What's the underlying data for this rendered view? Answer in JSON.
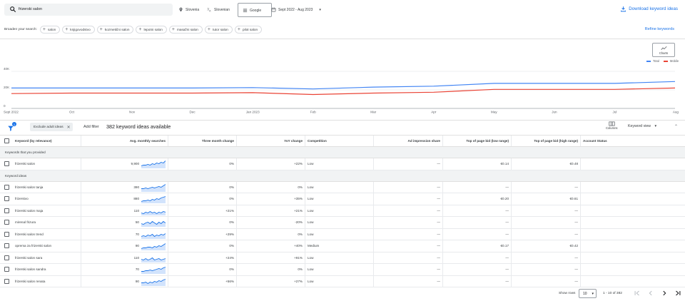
{
  "search": {
    "query": "frizerski salon"
  },
  "filters": {
    "location": "Slovenia",
    "language": "Slovenian",
    "network": "Google",
    "date_range": "Sept 2022 - Aug 2023"
  },
  "download_label": "Download keyword ideas",
  "broaden": {
    "label": "Broaden your search:",
    "chips": [
      "salon",
      "knjigovodstvo",
      "kozmetični salon",
      "lepotni salon",
      "masažni salon",
      "tutor salon",
      "pilot salon"
    ]
  },
  "refine_label": "Refine keywords",
  "charts_button_label": "Charts",
  "chart_data": {
    "type": "line",
    "x": [
      "Sept 2022",
      "Oct",
      "Nov",
      "Dec",
      "Jan 2023",
      "Feb",
      "Mar",
      "Apr",
      "May",
      "Jun",
      "Jul",
      "Aug"
    ],
    "series": [
      {
        "name": "Total",
        "color": "#4285f4",
        "values": [
          22000,
          22000,
          22000,
          22000,
          22500,
          21000,
          23000,
          24000,
          27000,
          27000,
          27000,
          29000
        ]
      },
      {
        "name": "Mobile",
        "color": "#ea4335",
        "values": [
          16000,
          16500,
          16500,
          16500,
          17000,
          15000,
          16500,
          17500,
          20500,
          20500,
          20500,
          22000
        ]
      }
    ],
    "y_ticks": [
      "40K",
      "20K",
      "0"
    ],
    "ylim": [
      0,
      40000
    ],
    "grid": true,
    "legend": "top-right"
  },
  "toolbar": {
    "filter_badge": "1",
    "adult_chip": "Exclude adult ideas",
    "add_filter": "Add filter",
    "ideas_count": "382 keyword ideas available",
    "columns_label": "Columns",
    "keyword_view": "Keyword view"
  },
  "table": {
    "headers": [
      "Keyword (by relevance)",
      "Avg. monthly searches",
      "Three month change",
      "YoY change",
      "Competition",
      "Ad impression share",
      "Top of page bid (low range)",
      "Top of page bid (high range)",
      "Account Status"
    ],
    "provided_label": "Keywords that you provided",
    "ideas_label": "Keyword ideas",
    "provided_rows": [
      {
        "keyword": "frizerski salon",
        "searches": "9,900",
        "three_month": "0%",
        "yoy": "+22%",
        "competition": "Low",
        "impression": "—",
        "bid_low": "€0.14",
        "bid_high": "€0.48",
        "status": ""
      }
    ],
    "idea_rows": [
      {
        "keyword": "frizerski salon tanja",
        "searches": "390",
        "three_month": "0%",
        "yoy": "0%",
        "competition": "Low",
        "impression": "—",
        "bid_low": "—",
        "bid_high": "—",
        "status": ""
      },
      {
        "keyword": "frizerstvo",
        "searches": "880",
        "three_month": "0%",
        "yoy": "+35%",
        "competition": "Low",
        "impression": "—",
        "bid_low": "€0.20",
        "bid_high": "€0.61",
        "status": ""
      },
      {
        "keyword": "frizerski salon maja",
        "searches": "110",
        "three_month": "+21%",
        "yoy": "+21%",
        "competition": "Low",
        "impression": "—",
        "bid_low": "—",
        "bid_high": "—",
        "status": ""
      },
      {
        "keyword": "mirenal frizura",
        "searches": "50",
        "three_month": "0%",
        "yoy": "-20%",
        "competition": "Low",
        "impression": "—",
        "bid_low": "—",
        "bid_high": "—",
        "status": ""
      },
      {
        "keyword": "frizerski salon trend",
        "searches": "70",
        "three_month": "+29%",
        "yoy": "0%",
        "competition": "Low",
        "impression": "—",
        "bid_low": "—",
        "bid_high": "—",
        "status": ""
      },
      {
        "keyword": "oprema za frizerski salon",
        "searches": "90",
        "three_month": "0%",
        "yoy": "+40%",
        "competition": "Medium",
        "impression": "—",
        "bid_low": "€0.17",
        "bid_high": "€0.42",
        "status": ""
      },
      {
        "keyword": "frizerski salon sara",
        "searches": "110",
        "three_month": "+24%",
        "yoy": "+91%",
        "competition": "Low",
        "impression": "—",
        "bid_low": "—",
        "bid_high": "—",
        "status": ""
      },
      {
        "keyword": "frizerski salon sandra",
        "searches": "70",
        "three_month": "0%",
        "yoy": "0%",
        "competition": "Low",
        "impression": "—",
        "bid_low": "—",
        "bid_high": "—",
        "status": ""
      },
      {
        "keyword": "frizerski salon renata",
        "searches": "90",
        "three_month": "+56%",
        "yoy": "+27%",
        "competition": "Low",
        "impression": "—",
        "bid_low": "—",
        "bid_high": "—",
        "status": ""
      }
    ]
  },
  "footer": {
    "show_rows_label": "Show rows",
    "rows_value": "10",
    "range": "1 - 10 of 382"
  }
}
